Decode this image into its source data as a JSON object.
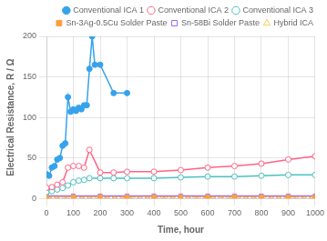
{
  "chart_data": {
    "type": "line",
    "xlabel": "Time, hour",
    "ylabel": "Electrical Resistance, R / Ω",
    "xlim": [
      0,
      1000
    ],
    "ylim": [
      0,
      200
    ],
    "xticks": [
      0,
      100,
      200,
      300,
      400,
      500,
      600,
      700,
      800,
      900,
      1000
    ],
    "yticks": [
      0,
      50,
      100,
      150,
      200
    ],
    "grid": true,
    "legend": "upper right",
    "series": [
      {
        "name": "Conventional ICA 1",
        "marker": "filled_circle",
        "line_style": "solid",
        "x": [
          0,
          10,
          20,
          30,
          40,
          50,
          60,
          70,
          80,
          90,
          100,
          110,
          120,
          130,
          140,
          150,
          160,
          170,
          180,
          200,
          250,
          300
        ],
        "values": [
          30,
          28,
          38,
          40,
          48,
          50,
          65,
          68,
          125,
          107,
          110,
          108,
          112,
          110,
          115,
          115,
          160,
          200,
          165,
          165,
          130,
          130
        ]
      },
      {
        "name": "Conventional ICA 2",
        "marker": "open_circle",
        "line_style": "solid",
        "x": [
          0,
          20,
          40,
          60,
          80,
          100,
          120,
          140,
          160,
          200,
          250,
          300,
          400,
          500,
          600,
          700,
          800,
          900,
          1000
        ],
        "values": [
          13,
          14,
          17,
          20,
          38,
          40,
          40,
          38,
          60,
          32,
          32,
          33,
          33,
          35,
          38,
          40,
          43,
          48,
          52
        ]
      },
      {
        "name": "Conventional ICA 3",
        "marker": "open_circle",
        "line_style": "solid",
        "x": [
          0,
          20,
          40,
          60,
          80,
          100,
          120,
          140,
          160,
          200,
          250,
          300,
          400,
          500,
          600,
          700,
          800,
          900,
          1000
        ],
        "values": [
          8,
          9,
          11,
          13,
          16,
          20,
          22,
          23,
          25,
          25,
          25,
          25,
          25,
          26,
          27,
          27,
          28,
          29,
          29
        ]
      },
      {
        "name": "Sn-3Ag-0.5Cu Solder Paste",
        "marker": "filled_square",
        "line_style": "dotted",
        "x": [
          0,
          100,
          200,
          300,
          400,
          500,
          600,
          700,
          800,
          900,
          1000
        ],
        "values": [
          2,
          2,
          2,
          2,
          2,
          2,
          2,
          2,
          2,
          2,
          2
        ]
      },
      {
        "name": "Sn-58Bi Solder Paste",
        "marker": "open_square",
        "line_style": "solid",
        "x": [
          0,
          100,
          200,
          300,
          400,
          500,
          600,
          700,
          800,
          900,
          1000
        ],
        "values": [
          3,
          3,
          3,
          3,
          3,
          3,
          3,
          3,
          3,
          3,
          3
        ]
      },
      {
        "name": "Hybrid ICA",
        "marker": "open_triangle",
        "line_style": "dashed",
        "x": [
          0,
          100,
          200,
          300,
          400,
          500,
          600,
          700,
          800,
          900,
          1000
        ],
        "values": [
          1,
          1,
          1,
          1,
          1,
          1,
          1,
          1,
          1,
          1,
          1
        ]
      }
    ]
  }
}
